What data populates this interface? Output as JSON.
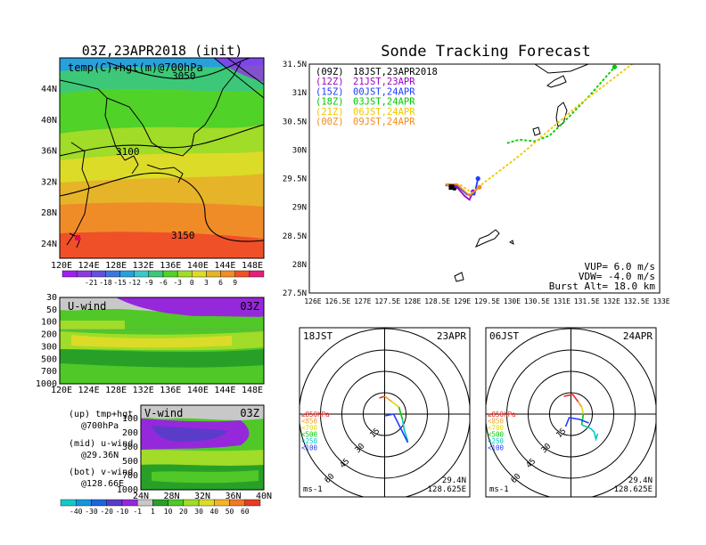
{
  "left": {
    "title": "03Z,23APR2018 (init)",
    "map": {
      "label": "temp(C)+hgt(m)@700hPa",
      "lat_ticks": [
        "44N",
        "40N",
        "36N",
        "32N",
        "28N",
        "24N"
      ],
      "lon_ticks": [
        "120E",
        "124E",
        "128E",
        "132E",
        "136E",
        "140E",
        "144E",
        "148E"
      ],
      "contours": [
        "3050",
        "3100",
        "3150"
      ],
      "colorbar_ticks": [
        "-21",
        "-18",
        "-15",
        "-12",
        "-9",
        "-6",
        "-3",
        "0",
        "3",
        "6",
        "9"
      ],
      "colorbar_colors": [
        "#a020f0",
        "#8c3cdc",
        "#6450dc",
        "#3c78dc",
        "#28a0dc",
        "#3cc8c8",
        "#3cc878",
        "#50d228",
        "#a0dc28",
        "#dcdc28",
        "#e6b428",
        "#f08c28",
        "#f05028",
        "#e61e78"
      ]
    },
    "uwind": {
      "label": "U-wind",
      "time": "03Z",
      "p_ticks": [
        "30",
        "50",
        "100",
        "200",
        "300",
        "500",
        "700",
        "1000"
      ],
      "lon_ticks": [
        "120E",
        "124E",
        "128E",
        "132E",
        "136E",
        "140E",
        "144E",
        "148E"
      ]
    },
    "notes": {
      "up1": "(up) tmp+hgt",
      "up2": "@700hPa",
      "mid1": "(mid) u-wind",
      "mid2": "@29.36N",
      "bot1": "(bot) v-wind",
      "bot2": "@128.66E"
    },
    "vwind": {
      "label": "V-wind",
      "time": "03Z",
      "p_ticks": [
        "100",
        "200",
        "300",
        "500",
        "700",
        "1000"
      ],
      "lat_ticks": [
        "24N",
        "28N",
        "32N",
        "36N",
        "40N"
      ]
    },
    "wind_colorbar": {
      "ticks": [
        "-40",
        "-30",
        "-20",
        "-10",
        "-1",
        "1",
        "10",
        "20",
        "30",
        "40",
        "50",
        "60"
      ],
      "colors": [
        "#14c8c8",
        "#1496dc",
        "#1e64dc",
        "#5a3cc8",
        "#9628dc",
        "#c8c8c8",
        "#28a028",
        "#50c828",
        "#a0dc28",
        "#dcdc28",
        "#f0b428",
        "#f07828",
        "#e63c28"
      ]
    }
  },
  "right": {
    "title": "Sonde Tracking Forecast",
    "lat_ticks": [
      "31.5N",
      "31N",
      "30.5N",
      "30N",
      "29.5N",
      "29N",
      "28.5N",
      "28N",
      "27.5N"
    ],
    "lon_ticks": [
      "126E",
      "126.5E",
      "127E",
      "127.5E",
      "128E",
      "128.5E",
      "129E",
      "129.5E",
      "130E",
      "130.5E",
      "131E",
      "131.5E",
      "132E",
      "132.5E",
      "133E"
    ],
    "legend": [
      {
        "code": "(09Z)",
        "label": "18JST,23APR2018",
        "color": "#000000"
      },
      {
        "code": "(12Z)",
        "label": "21JST,23APR",
        "color": "#a000c8"
      },
      {
        "code": "(15Z)",
        "label": "00JST,24APR",
        "color": "#1e3cff"
      },
      {
        "code": "(18Z)",
        "label": "03JST,24APR",
        "color": "#00c800"
      },
      {
        "code": "(21Z)",
        "label": "06JST,24APR",
        "color": "#f0c800"
      },
      {
        "code": "(00Z)",
        "label": "09JST,24APR",
        "color": "#f08c1e"
      }
    ],
    "params": {
      "vup": "VUP= 6.0 m/s",
      "vdw": "VDW= -4.0 m/s",
      "burst": "Burst Alt= 18.0 km"
    }
  },
  "hodo1": {
    "jst": "18JST",
    "date": "23APR",
    "rings": [
      "15",
      "30",
      "45",
      "60"
    ],
    "levels": [
      {
        "label": "≥850hPa",
        "color": "#f02828"
      },
      {
        "label": "<850",
        "color": "#f0a028"
      },
      {
        "label": "<700",
        "color": "#dcdc00"
      },
      {
        "label": "<500",
        "color": "#00c800"
      },
      {
        "label": "<250",
        "color": "#00c8c8"
      },
      {
        "label": "<100",
        "color": "#1e3cff"
      }
    ],
    "unit": "ms-1",
    "lat": "29.4N",
    "lon": "128.625E"
  },
  "hodo2": {
    "jst": "06JST",
    "date": "24APR",
    "rings": [
      "15",
      "30",
      "45",
      "60"
    ],
    "levels": [
      {
        "label": "≥850hPa",
        "color": "#f02828"
      },
      {
        "label": "<850",
        "color": "#f0a028"
      },
      {
        "label": "<700",
        "color": "#dcdc00"
      },
      {
        "label": "<500",
        "color": "#00c800"
      },
      {
        "label": "<250",
        "color": "#00c8c8"
      },
      {
        "label": "<100",
        "color": "#1e3cff"
      }
    ],
    "unit": "ms-1",
    "lat": "29.4N",
    "lon": "128.625E"
  },
  "chart_data": [
    {
      "type": "heatmap",
      "title": "03Z,23APR2018 (init)",
      "subtitle": "temp(C)+hgt(m)@700hPa",
      "xlim": [
        120,
        150
      ],
      "ylim": [
        22,
        48
      ],
      "contour_values": [
        3050,
        3100,
        3150
      ]
    },
    {
      "type": "line",
      "title": "Sonde Tracking Forecast",
      "xlim": [
        126,
        133
      ],
      "ylim": [
        27.5,
        31.5
      ],
      "series": [
        {
          "name": "(09Z) 18JST,23APR2018",
          "x": [
            128.78,
            128.9
          ],
          "y": [
            29.41,
            29.33
          ]
        },
        {
          "name": "(12Z) 21JST,23APR",
          "x": [
            128.75,
            128.95,
            129.1,
            129.2,
            129.27
          ],
          "y": [
            29.38,
            29.35,
            29.2,
            29.13,
            29.27
          ]
        },
        {
          "name": "(15Z) 00JST,24APR",
          "x": [
            128.72,
            128.95,
            129.15,
            129.3,
            129.37
          ],
          "y": [
            29.38,
            29.38,
            29.22,
            29.22,
            29.5
          ]
        },
        {
          "name": "(18Z) 03JST,24APR",
          "x": [
            129.95,
            130.2,
            130.5,
            130.8,
            131.1,
            131.6,
            132.1
          ],
          "y": [
            30.12,
            30.18,
            30.15,
            30.25,
            30.5,
            30.95,
            31.45
          ]
        },
        {
          "name": "(21Z) 06JST,24APR",
          "x": [
            128.75,
            129,
            129.25,
            129.45,
            129.6,
            130.2,
            130.8,
            131.4,
            132,
            132.6
          ],
          "y": [
            29.38,
            29.4,
            29.25,
            29.4,
            29.5,
            29.9,
            30.35,
            30.8,
            31.2,
            31.6
          ]
        },
        {
          "name": "(00Z) 09JST,24APR",
          "x": [
            128.72,
            128.95,
            129.2,
            129.4
          ],
          "y": [
            29.4,
            29.4,
            29.2,
            29.35
          ]
        }
      ]
    }
  ]
}
